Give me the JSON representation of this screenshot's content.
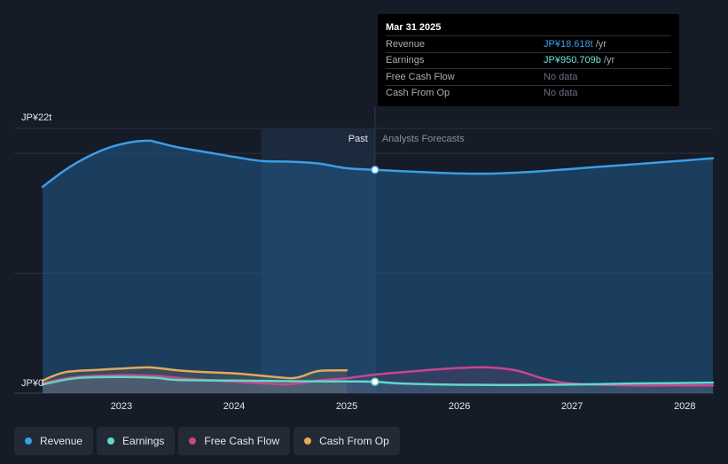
{
  "tooltip": {
    "date": "Mar 31 2025",
    "rows": [
      {
        "name": "Revenue",
        "value": "JP¥18.618t",
        "unit": "/yr",
        "color": "#3b9ee8"
      },
      {
        "name": "Earnings",
        "value": "JP¥950.709b",
        "unit": "/yr",
        "color": "#6ee8d8"
      },
      {
        "name": "Free Cash Flow",
        "value": "No data",
        "unit": "",
        "color": "#6b7280"
      },
      {
        "name": "Cash From Op",
        "value": "No data",
        "unit": "",
        "color": "#6b7280"
      }
    ]
  },
  "regions": {
    "past": "Past",
    "forecast": "Analysts Forecasts"
  },
  "legend": [
    {
      "label": "Revenue",
      "color": "#3b9ee8"
    },
    {
      "label": "Earnings",
      "color": "#5fd9c9"
    },
    {
      "label": "Free Cash Flow",
      "color": "#c8468a"
    },
    {
      "label": "Cash From Op",
      "color": "#e6a85a"
    }
  ],
  "chart_data": {
    "type": "area",
    "ylabel_top": "JP¥22t",
    "ylabel_bottom": "JP¥0",
    "ylim": [
      0,
      22
    ],
    "xlim": [
      2022.3,
      2028.25
    ],
    "x_ticks": [
      "2023",
      "2024",
      "2025",
      "2026",
      "2027",
      "2028"
    ],
    "past_start": 2024.24,
    "divider": 2025.25,
    "grid": true,
    "series": [
      {
        "name": "Revenue",
        "color": "#3b9ee8",
        "x": [
          2022.3,
          2022.5,
          2022.7,
          2022.9,
          2023.1,
          2023.25,
          2023.3,
          2023.5,
          2023.75,
          2024.0,
          2024.25,
          2024.5,
          2024.75,
          2025.0,
          2025.25,
          2025.5,
          2025.75,
          2026.0,
          2026.25,
          2026.5,
          2026.75,
          2027.0,
          2027.25,
          2027.5,
          2027.75,
          2028.0,
          2028.25
        ],
        "values": [
          17.2,
          18.6,
          19.7,
          20.5,
          20.95,
          21.05,
          20.95,
          20.5,
          20.1,
          19.7,
          19.35,
          19.3,
          19.15,
          18.75,
          18.62,
          18.5,
          18.4,
          18.32,
          18.3,
          18.38,
          18.52,
          18.7,
          18.88,
          19.05,
          19.22,
          19.4,
          19.58
        ]
      },
      {
        "name": "Earnings",
        "color": "#5fd9c9",
        "x": [
          2022.3,
          2022.6,
          2023.0,
          2023.3,
          2023.5,
          2024.0,
          2024.5,
          2025.0,
          2025.25,
          2025.5,
          2026.0,
          2026.5,
          2027.0,
          2027.5,
          2028.0,
          2028.25
        ],
        "values": [
          0.72,
          1.25,
          1.35,
          1.28,
          1.1,
          1.05,
          1.0,
          0.98,
          0.95,
          0.8,
          0.7,
          0.68,
          0.72,
          0.8,
          0.85,
          0.88
        ]
      },
      {
        "name": "Free Cash Flow",
        "color": "#c8468a",
        "x": [
          2022.3,
          2022.6,
          2023.0,
          2023.3,
          2023.6,
          2024.0,
          2024.3,
          2024.5,
          2024.75,
          2025.0,
          2025.25,
          2025.5,
          2025.75,
          2026.0,
          2026.25,
          2026.5,
          2026.75,
          2027.0,
          2027.5,
          2028.0,
          2028.25
        ],
        "values": [
          0.85,
          1.35,
          1.5,
          1.45,
          1.2,
          0.95,
          0.8,
          0.75,
          1.05,
          1.25,
          1.55,
          1.75,
          1.95,
          2.1,
          2.15,
          1.9,
          1.2,
          0.8,
          0.65,
          0.65,
          0.65
        ]
      },
      {
        "name": "Cash From Op",
        "color": "#e6a85a",
        "x": [
          2022.3,
          2022.5,
          2022.8,
          2023.0,
          2023.25,
          2023.5,
          2023.75,
          2024.0,
          2024.25,
          2024.5,
          2024.6,
          2024.75,
          2025.0
        ],
        "values": [
          1.05,
          1.75,
          1.95,
          2.05,
          2.15,
          1.9,
          1.75,
          1.65,
          1.45,
          1.25,
          1.4,
          1.85,
          1.9
        ]
      }
    ]
  }
}
